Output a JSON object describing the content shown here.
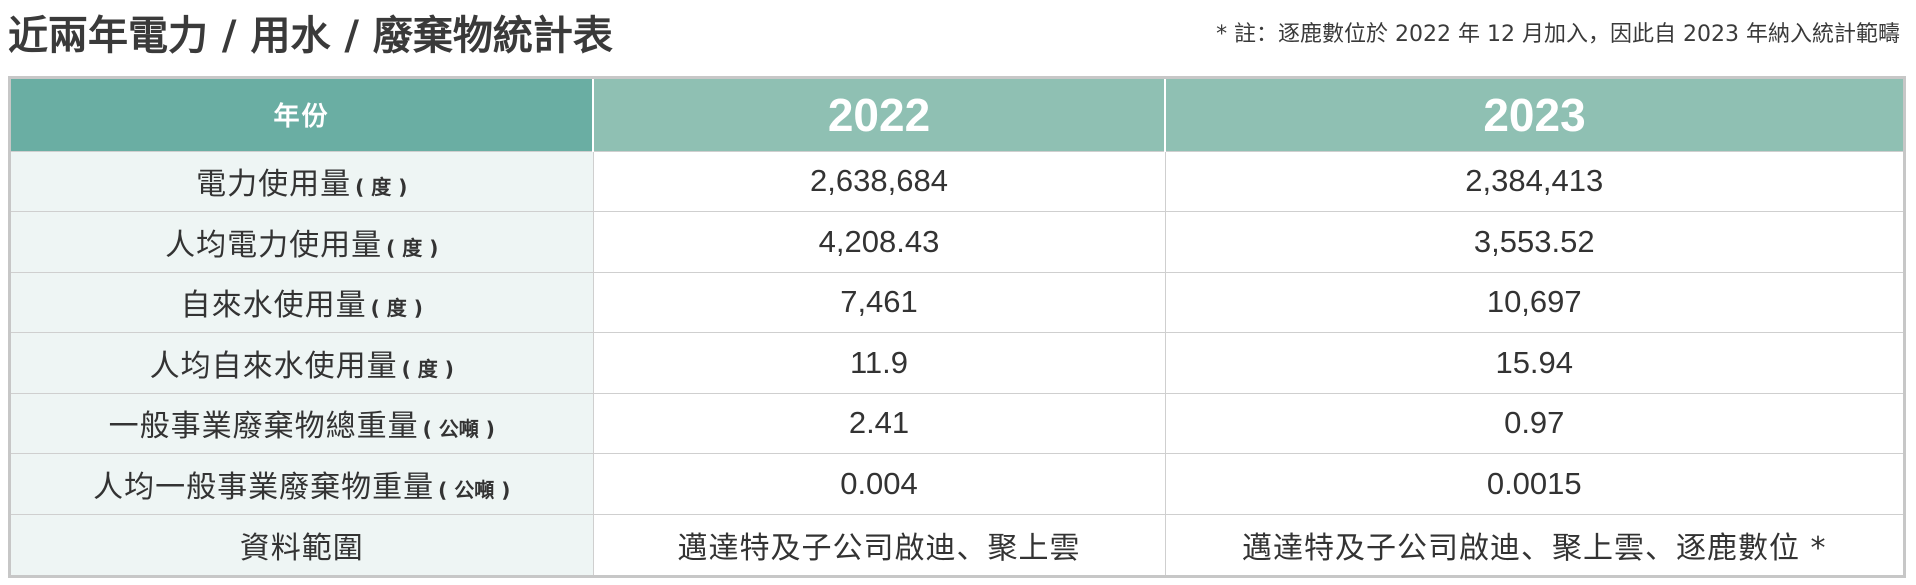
{
  "header": {
    "title": "近兩年電力 / 用水 / 廢棄物統計表",
    "note": "* 註：逐鹿數位於 2022 年 12 月加入，因此自 2023 年納入統計範疇"
  },
  "table": {
    "header_label": "年份",
    "years": [
      "2022",
      "2023"
    ],
    "rows": [
      {
        "label": "電力使用量",
        "unit": "( 度 )",
        "v2022": "2,638,684",
        "v2023": "2,384,413"
      },
      {
        "label": "人均電力使用量",
        "unit": "( 度 )",
        "v2022": "4,208.43",
        "v2023": "3,553.52"
      },
      {
        "label": "自來水使用量",
        "unit": "( 度 )",
        "v2022": "7,461",
        "v2023": "10,697"
      },
      {
        "label": "人均自來水使用量",
        "unit": "( 度 )",
        "v2022": "11.9",
        "v2023": "15.94"
      },
      {
        "label": "一般事業廢棄物總重量",
        "unit": "( 公噸 )",
        "v2022": "2.41",
        "v2023": "0.97"
      },
      {
        "label": "人均一般事業廢棄物重量",
        "unit": "( 公噸 )",
        "v2022": "0.004",
        "v2023": "0.0015"
      }
    ],
    "source_row": {
      "label": "資料範圍",
      "v2022": "邁達特及子公司啟迪、聚上雲",
      "v2023": "邁達特及子公司啟迪、聚上雲、逐鹿數位 *"
    }
  },
  "colors": {
    "header_label_bg": "#6aaea3",
    "header_year_bg": "#8fc0b3",
    "row_label_bg": "#eef5f4",
    "border": "#cfcfcf",
    "text": "#333333"
  }
}
